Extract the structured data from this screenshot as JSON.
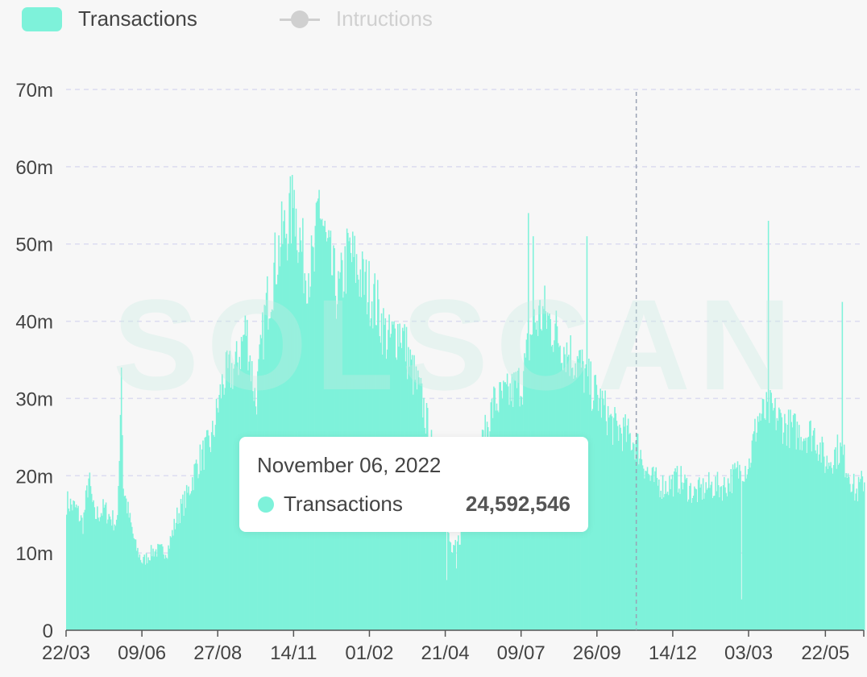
{
  "watermark": "SOLSCAN",
  "legend": {
    "transactions_label": "Transactions",
    "instructions_label": "Intructions"
  },
  "tooltip": {
    "date": "November 06, 2022",
    "series_label": "Transactions",
    "value": "24,592,546"
  },
  "colors": {
    "transactions": "#7ef2da",
    "instructions_inactive": "#d0d0d0",
    "axis_text": "#444444",
    "grid": "#dcdcf0"
  },
  "chart_data": {
    "type": "bar",
    "title": "",
    "xlabel": "",
    "ylabel": "",
    "ylim": [
      0,
      70000000
    ],
    "y_ticks": [
      {
        "value": 0,
        "label": "0"
      },
      {
        "value": 10000000,
        "label": "10m"
      },
      {
        "value": 20000000,
        "label": "20m"
      },
      {
        "value": 30000000,
        "label": "30m"
      },
      {
        "value": 40000000,
        "label": "40m"
      },
      {
        "value": 50000000,
        "label": "50m"
      },
      {
        "value": 60000000,
        "label": "60m"
      },
      {
        "value": 70000000,
        "label": "70m"
      }
    ],
    "x_tick_labels": [
      "22/03",
      "09/06",
      "27/08",
      "14/11",
      "01/02",
      "21/04",
      "09/07",
      "26/09",
      "14/12",
      "03/03",
      "22/05"
    ],
    "x_tick_dates": [
      "2021-03-22",
      "2021-06-09",
      "2021-08-27",
      "2021-11-14",
      "2022-02-01",
      "2022-04-21",
      "2022-07-09",
      "2022-09-26",
      "2022-12-14",
      "2023-03-03",
      "2023-05-22"
    ],
    "x_range": [
      "2021-03-22",
      "2023-07-01"
    ],
    "highlight_date": "2022-11-06",
    "grid": true,
    "legend_position": "top-left",
    "series": [
      {
        "name": "Transactions",
        "color": "#7ef2da",
        "interpolation": "linear-daily",
        "points": [
          [
            "2021-03-22",
            17000000
          ],
          [
            "2021-04-01",
            16000000
          ],
          [
            "2021-04-08",
            14000000
          ],
          [
            "2021-04-14",
            20000000
          ],
          [
            "2021-04-20",
            15000000
          ],
          [
            "2021-04-30",
            16000000
          ],
          [
            "2021-05-06",
            15000000
          ],
          [
            "2021-05-14",
            14000000
          ],
          [
            "2021-05-18",
            34000000
          ],
          [
            "2021-05-20",
            19000000
          ],
          [
            "2021-05-26",
            15000000
          ],
          [
            "2021-06-02",
            11000000
          ],
          [
            "2021-06-09",
            9000000
          ],
          [
            "2021-06-20",
            10500000
          ],
          [
            "2021-07-05",
            10500000
          ],
          [
            "2021-07-15",
            15000000
          ],
          [
            "2021-07-25",
            17500000
          ],
          [
            "2021-08-05",
            22000000
          ],
          [
            "2021-08-20",
            25000000
          ],
          [
            "2021-09-01",
            33000000
          ],
          [
            "2021-09-15",
            35000000
          ],
          [
            "2021-09-25",
            40000000
          ],
          [
            "2021-10-05",
            30000000
          ],
          [
            "2021-10-15",
            42000000
          ],
          [
            "2021-10-28",
            50000000
          ],
          [
            "2021-11-08",
            54000000
          ],
          [
            "2021-11-14",
            56000000
          ],
          [
            "2021-11-25",
            48000000
          ],
          [
            "2021-12-05",
            48000000
          ],
          [
            "2021-12-10",
            57000000
          ],
          [
            "2021-12-18",
            50000000
          ],
          [
            "2021-12-30",
            44000000
          ],
          [
            "2022-01-10",
            50000000
          ],
          [
            "2022-01-25",
            46000000
          ],
          [
            "2022-02-05",
            44000000
          ],
          [
            "2022-02-20",
            38000000
          ],
          [
            "2022-03-05",
            40000000
          ],
          [
            "2022-03-15",
            35000000
          ],
          [
            "2022-03-28",
            30000000
          ],
          [
            "2022-04-05",
            25000000
          ],
          [
            "2022-04-12",
            20000000
          ],
          [
            "2022-04-21",
            14000000
          ],
          [
            "2022-04-28",
            10000000
          ],
          [
            "2022-05-08",
            13000000
          ],
          [
            "2022-05-18",
            22000000
          ],
          [
            "2022-05-28",
            24000000
          ],
          [
            "2022-06-10",
            30000000
          ],
          [
            "2022-06-25",
            31000000
          ],
          [
            "2022-07-10",
            33000000
          ],
          [
            "2022-07-20",
            40000000
          ],
          [
            "2022-08-01",
            42000000
          ],
          [
            "2022-08-15",
            39000000
          ],
          [
            "2022-08-25",
            37000000
          ],
          [
            "2022-09-08",
            35000000
          ],
          [
            "2022-09-20",
            32000000
          ],
          [
            "2022-09-30",
            30000000
          ],
          [
            "2022-10-12",
            27000000
          ],
          [
            "2022-10-25",
            26000000
          ],
          [
            "2022-11-06",
            24592546
          ],
          [
            "2022-11-20",
            20000000
          ],
          [
            "2022-12-05",
            19000000
          ],
          [
            "2022-12-20",
            20000000
          ],
          [
            "2023-01-05",
            18000000
          ],
          [
            "2023-01-20",
            19000000
          ],
          [
            "2023-02-05",
            19000000
          ],
          [
            "2023-02-20",
            21000000
          ],
          [
            "2023-03-03",
            22000000
          ],
          [
            "2023-03-12",
            28000000
          ],
          [
            "2023-03-25",
            29000000
          ],
          [
            "2023-04-10",
            27000000
          ],
          [
            "2023-04-25",
            26000000
          ],
          [
            "2023-05-10",
            26000000
          ],
          [
            "2023-05-22",
            22000000
          ],
          [
            "2023-06-05",
            24000000
          ],
          [
            "2023-06-15",
            21000000
          ],
          [
            "2023-06-22",
            18000000
          ],
          [
            "2023-07-01",
            20000000
          ]
        ],
        "spikes": [
          [
            "2021-05-18",
            34000000
          ],
          [
            "2021-11-14",
            57000000
          ],
          [
            "2021-12-10",
            57000000
          ],
          [
            "2022-07-16",
            54000000
          ],
          [
            "2022-07-21",
            51000000
          ],
          [
            "2022-09-15",
            51000000
          ],
          [
            "2023-03-23",
            53000000
          ],
          [
            "2023-06-08",
            42500000
          ]
        ],
        "dips": [
          [
            "2022-04-22",
            6500000
          ],
          [
            "2022-05-02",
            8000000
          ],
          [
            "2023-02-23",
            4000000
          ]
        ]
      },
      {
        "name": "Intructions",
        "hidden": true,
        "color": "#d0d0d0",
        "points": []
      }
    ]
  }
}
